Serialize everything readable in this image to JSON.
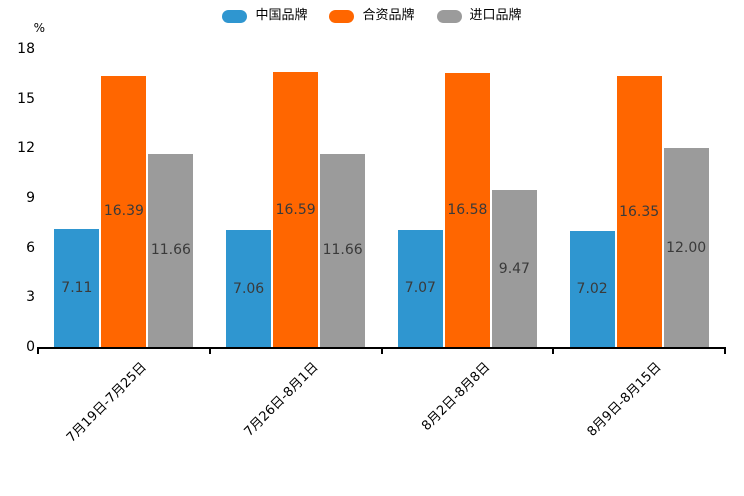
{
  "chart_data": {
    "type": "bar",
    "title": "",
    "unit_label": "%",
    "categories": [
      "7月19日-7月25日",
      "7月26日-8月1日",
      "8月2日-8月8日",
      "8月9日-8月15日"
    ],
    "series": [
      {
        "name": "中国品牌",
        "color": "#2F96D0",
        "values": [
          7.11,
          7.06,
          7.07,
          7.02
        ]
      },
      {
        "name": "合资品牌",
        "color": "#FF6600",
        "values": [
          16.39,
          16.59,
          16.58,
          16.35
        ]
      },
      {
        "name": "进口品牌",
        "color": "#9B9B9B",
        "values": [
          11.66,
          11.66,
          9.47,
          12.0
        ]
      }
    ],
    "value_label_decimals": 2,
    "value_label_color": "#3a3a3a",
    "y_ticks": [
      0,
      3,
      6,
      9,
      12,
      15,
      18
    ],
    "ylim": [
      0,
      18
    ],
    "grid": false,
    "legend_position": "top-center",
    "axis_color": "#000000"
  }
}
